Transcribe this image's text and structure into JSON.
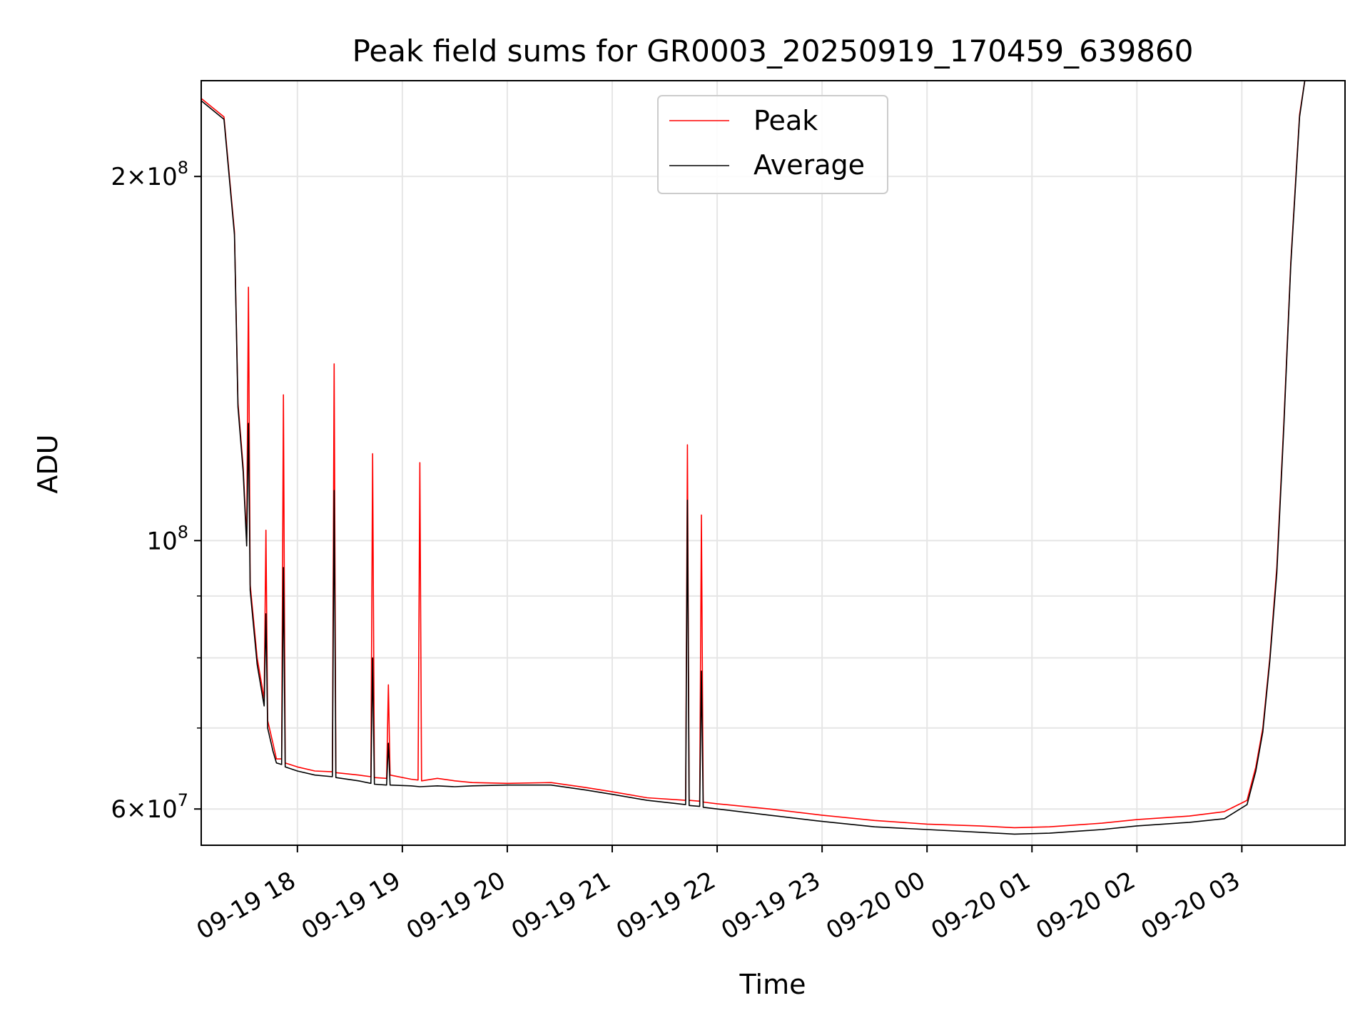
{
  "chart_data": {
    "type": "line",
    "title": "Peak field sums for GR0003_20250919_170459_639860",
    "xlabel": "Time",
    "ylabel": "ADU",
    "yscale": "log",
    "ylim": [
      56000000,
      240000000
    ],
    "xlim": [
      "2025-09-19 17:05",
      "2025-09-20 03:59"
    ],
    "grid": true,
    "legend_position": "upper center",
    "x_ticks": [
      {
        "t": "2025-09-19 18:00",
        "label": "09-19 18"
      },
      {
        "t": "2025-09-19 19:00",
        "label": "09-19 19"
      },
      {
        "t": "2025-09-19 20:00",
        "label": "09-19 20"
      },
      {
        "t": "2025-09-19 21:00",
        "label": "09-19 21"
      },
      {
        "t": "2025-09-19 22:00",
        "label": "09-19 22"
      },
      {
        "t": "2025-09-19 23:00",
        "label": "09-19 23"
      },
      {
        "t": "2025-09-20 00:00",
        "label": "09-20 00"
      },
      {
        "t": "2025-09-20 01:00",
        "label": "09-20 01"
      },
      {
        "t": "2025-09-20 02:00",
        "label": "09-20 02"
      },
      {
        "t": "2025-09-20 03:00",
        "label": "09-20 03"
      }
    ],
    "y_ticks": [
      {
        "v": 60000000,
        "base": "6×10",
        "exp": "7"
      },
      {
        "v": 100000000,
        "base": "10",
        "exp": "8"
      },
      {
        "v": 200000000,
        "base": "2×10",
        "exp": "8"
      }
    ],
    "y_minor_ticks": [
      70000000,
      80000000,
      90000000
    ],
    "series": [
      {
        "name": "Peak",
        "color": "#ff0000",
        "points": [
          [
            "2025-09-19 17:05",
            232000000
          ],
          [
            "2025-09-19 17:18",
            224000000
          ],
          [
            "2025-09-19 17:24",
            180000000
          ],
          [
            "2025-09-19 17:26",
            130000000
          ],
          [
            "2025-09-19 17:29",
            115000000
          ],
          [
            "2025-09-19 17:31",
            100000000
          ],
          [
            "2025-09-19 17:32",
            162000000
          ],
          [
            "2025-09-19 17:33",
            92000000
          ],
          [
            "2025-09-19 17:37",
            80000000
          ],
          [
            "2025-09-19 17:41",
            74000000
          ],
          [
            "2025-09-19 17:42",
            102000000
          ],
          [
            "2025-09-19 17:43",
            71000000
          ],
          [
            "2025-09-19 17:46",
            68000000
          ],
          [
            "2025-09-19 17:48",
            66000000
          ],
          [
            "2025-09-19 17:51",
            66000000
          ],
          [
            "2025-09-19 17:52",
            132000000
          ],
          [
            "2025-09-19 17:53",
            65500000
          ],
          [
            "2025-09-19 18:00",
            65000000
          ],
          [
            "2025-09-19 18:10",
            64500000
          ],
          [
            "2025-09-19 18:20",
            64400000
          ],
          [
            "2025-09-19 18:21",
            140000000
          ],
          [
            "2025-09-19 18:22",
            64300000
          ],
          [
            "2025-09-19 18:35",
            64000000
          ],
          [
            "2025-09-19 18:42",
            63800000
          ],
          [
            "2025-09-19 18:43",
            118000000
          ],
          [
            "2025-09-19 18:44",
            63700000
          ],
          [
            "2025-09-19 18:51",
            63600000
          ],
          [
            "2025-09-19 18:52",
            76000000
          ],
          [
            "2025-09-19 18:53",
            64000000
          ],
          [
            "2025-09-19 19:05",
            63500000
          ],
          [
            "2025-09-19 19:09",
            63400000
          ],
          [
            "2025-09-19 19:10",
            116000000
          ],
          [
            "2025-09-19 19:11",
            63300000
          ],
          [
            "2025-09-19 19:20",
            63600000
          ],
          [
            "2025-09-19 19:30",
            63300000
          ],
          [
            "2025-09-19 19:40",
            63100000
          ],
          [
            "2025-09-19 20:00",
            63000000
          ],
          [
            "2025-09-19 20:25",
            63100000
          ],
          [
            "2025-09-19 20:45",
            62500000
          ],
          [
            "2025-09-19 21:00",
            62000000
          ],
          [
            "2025-09-19 21:20",
            61300000
          ],
          [
            "2025-09-19 21:42",
            61000000
          ],
          [
            "2025-09-19 21:43",
            120000000
          ],
          [
            "2025-09-19 21:44",
            61000000
          ],
          [
            "2025-09-19 21:50",
            60900000
          ],
          [
            "2025-09-19 21:51",
            105000000
          ],
          [
            "2025-09-19 21:52",
            60800000
          ],
          [
            "2025-09-19 22:00",
            60600000
          ],
          [
            "2025-09-19 22:30",
            60000000
          ],
          [
            "2025-09-19 23:00",
            59300000
          ],
          [
            "2025-09-19 23:30",
            58700000
          ],
          [
            "2025-09-20 00:00",
            58300000
          ],
          [
            "2025-09-20 00:30",
            58100000
          ],
          [
            "2025-09-20 00:50",
            57900000
          ],
          [
            "2025-09-20 01:10",
            58000000
          ],
          [
            "2025-09-20 01:40",
            58400000
          ],
          [
            "2025-09-20 02:00",
            58800000
          ],
          [
            "2025-09-20 02:30",
            59200000
          ],
          [
            "2025-09-20 02:50",
            59700000
          ],
          [
            "2025-09-20 03:03",
            61000000
          ],
          [
            "2025-09-20 03:08",
            65000000
          ],
          [
            "2025-09-20 03:12",
            70000000
          ],
          [
            "2025-09-20 03:16",
            80000000
          ],
          [
            "2025-09-20 03:20",
            95000000
          ],
          [
            "2025-09-20 03:24",
            125000000
          ],
          [
            "2025-09-20 03:28",
            170000000
          ],
          [
            "2025-09-20 03:33",
            225000000
          ],
          [
            "2025-09-20 03:36",
            240000000
          ]
        ]
      },
      {
        "name": "Average",
        "color": "#000000",
        "points": [
          [
            "2025-09-19 17:05",
            231000000
          ],
          [
            "2025-09-19 17:18",
            223000000
          ],
          [
            "2025-09-19 17:24",
            179000000
          ],
          [
            "2025-09-19 17:26",
            129000000
          ],
          [
            "2025-09-19 17:29",
            114000000
          ],
          [
            "2025-09-19 17:31",
            99000000
          ],
          [
            "2025-09-19 17:32",
            125000000
          ],
          [
            "2025-09-19 17:33",
            91000000
          ],
          [
            "2025-09-19 17:37",
            79000000
          ],
          [
            "2025-09-19 17:41",
            73000000
          ],
          [
            "2025-09-19 17:42",
            87000000
          ],
          [
            "2025-09-19 17:43",
            70000000
          ],
          [
            "2025-09-19 17:46",
            67000000
          ],
          [
            "2025-09-19 17:48",
            65500000
          ],
          [
            "2025-09-19 17:51",
            65300000
          ],
          [
            "2025-09-19 17:52",
            95000000
          ],
          [
            "2025-09-19 17:53",
            65000000
          ],
          [
            "2025-09-19 18:00",
            64500000
          ],
          [
            "2025-09-19 18:10",
            64000000
          ],
          [
            "2025-09-19 18:20",
            63800000
          ],
          [
            "2025-09-19 18:21",
            110000000
          ],
          [
            "2025-09-19 18:22",
            63700000
          ],
          [
            "2025-09-19 18:35",
            63300000
          ],
          [
            "2025-09-19 18:42",
            63000000
          ],
          [
            "2025-09-19 18:43",
            80000000
          ],
          [
            "2025-09-19 18:44",
            62900000
          ],
          [
            "2025-09-19 18:51",
            62800000
          ],
          [
            "2025-09-19 18:52",
            68000000
          ],
          [
            "2025-09-19 18:53",
            62800000
          ],
          [
            "2025-09-19 19:05",
            62700000
          ],
          [
            "2025-09-19 19:10",
            62600000
          ],
          [
            "2025-09-19 19:20",
            62700000
          ],
          [
            "2025-09-19 19:30",
            62600000
          ],
          [
            "2025-09-19 19:40",
            62700000
          ],
          [
            "2025-09-19 20:00",
            62800000
          ],
          [
            "2025-09-19 20:25",
            62800000
          ],
          [
            "2025-09-19 20:45",
            62200000
          ],
          [
            "2025-09-19 21:00",
            61700000
          ],
          [
            "2025-09-19 21:20",
            61000000
          ],
          [
            "2025-09-19 21:42",
            60500000
          ],
          [
            "2025-09-19 21:43",
            108000000
          ],
          [
            "2025-09-19 21:44",
            60400000
          ],
          [
            "2025-09-19 21:50",
            60300000
          ],
          [
            "2025-09-19 21:51",
            78000000
          ],
          [
            "2025-09-19 21:52",
            60200000
          ],
          [
            "2025-09-19 22:00",
            60000000
          ],
          [
            "2025-09-19 22:30",
            59300000
          ],
          [
            "2025-09-19 23:00",
            58600000
          ],
          [
            "2025-09-19 23:30",
            58000000
          ],
          [
            "2025-09-20 00:00",
            57700000
          ],
          [
            "2025-09-20 00:30",
            57400000
          ],
          [
            "2025-09-20 00:50",
            57200000
          ],
          [
            "2025-09-20 01:10",
            57300000
          ],
          [
            "2025-09-20 01:40",
            57700000
          ],
          [
            "2025-09-20 02:00",
            58100000
          ],
          [
            "2025-09-20 02:30",
            58500000
          ],
          [
            "2025-09-20 02:50",
            58900000
          ],
          [
            "2025-09-20 03:03",
            60500000
          ],
          [
            "2025-09-20 03:08",
            64500000
          ],
          [
            "2025-09-20 03:12",
            69500000
          ],
          [
            "2025-09-20 03:16",
            79500000
          ],
          [
            "2025-09-20 03:20",
            94000000
          ],
          [
            "2025-09-20 03:24",
            124000000
          ],
          [
            "2025-09-20 03:28",
            169000000
          ],
          [
            "2025-09-20 03:33",
            224000000
          ],
          [
            "2025-09-20 03:36",
            240000000
          ]
        ]
      }
    ]
  }
}
